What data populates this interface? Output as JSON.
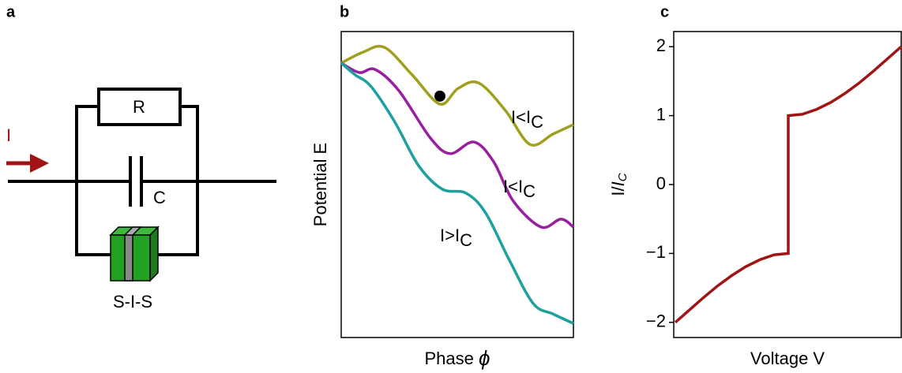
{
  "panel_a": {
    "label": "a",
    "current": "I",
    "resistor": "R",
    "capacitor": "C",
    "junction": "S-I-S"
  },
  "panel_b": {
    "label": "b",
    "chart_data": {
      "type": "line",
      "ylabel": "Potential E",
      "xlabel": "Phase",
      "xlabel_symbol": "ϕ",
      "xlim": [
        0,
        1
      ],
      "ylim": [
        0,
        1
      ],
      "series": [
        {
          "color": "#a0a01e",
          "x": [
            0,
            0.095,
            0.187,
            0.306,
            0.425,
            0.503,
            0.592,
            0.707,
            0.813,
            0.912,
            1.0
          ],
          "values": [
            0.897,
            0.933,
            0.948,
            0.858,
            0.763,
            0.814,
            0.832,
            0.742,
            0.631,
            0.665,
            0.696
          ]
        },
        {
          "color": "#9a1ea0",
          "x": [
            0,
            0.078,
            0.146,
            0.248,
            0.384,
            0.469,
            0.571,
            0.656,
            0.741,
            0.861,
            0.946,
            1.0
          ],
          "values": [
            0.897,
            0.866,
            0.876,
            0.807,
            0.652,
            0.601,
            0.639,
            0.575,
            0.446,
            0.361,
            0.387,
            0.361
          ]
        },
        {
          "color": "#1ea0a0",
          "x": [
            0,
            0.061,
            0.129,
            0.231,
            0.333,
            0.435,
            0.537,
            0.622,
            0.724,
            0.827,
            0.912,
            1.0
          ],
          "values": [
            0.897,
            0.858,
            0.82,
            0.704,
            0.562,
            0.485,
            0.472,
            0.407,
            0.253,
            0.111,
            0.077,
            0.046
          ]
        }
      ],
      "marker": {
        "x": 0.425,
        "y": 0.789
      },
      "annotations": [
        {
          "text": "I<I",
          "sub": "C"
        },
        {
          "text": "I<I",
          "sub": "C"
        },
        {
          "text": "I>I",
          "sub": "C"
        }
      ]
    }
  },
  "panel_c": {
    "label": "c",
    "chart_data": {
      "type": "line",
      "xlabel": "Voltage V",
      "ylabel": {
        "text": "I/",
        "italic": "I",
        "sub": "C"
      },
      "xlim": [
        -1,
        1
      ],
      "ylim": [
        -2.22,
        2.22
      ],
      "yticks": [
        {
          "value": -2,
          "label": "−2"
        },
        {
          "value": -1,
          "label": "−1"
        },
        0,
        1,
        2
      ],
      "series": [
        {
          "color": "#a01414",
          "x": [
            -1,
            -0.875,
            -0.75,
            -0.625,
            -0.5,
            -0.375,
            -0.25,
            -0.125,
            0,
            0,
            0.125,
            0.25,
            0.375,
            0.5,
            0.625,
            0.75,
            0.875,
            1
          ],
          "values": [
            -2,
            -1.82,
            -1.64,
            -1.47,
            -1.32,
            -1.19,
            -1.09,
            -1.02,
            -1,
            1,
            1.02,
            1.09,
            1.19,
            1.32,
            1.47,
            1.64,
            1.82,
            2
          ]
        }
      ]
    }
  }
}
